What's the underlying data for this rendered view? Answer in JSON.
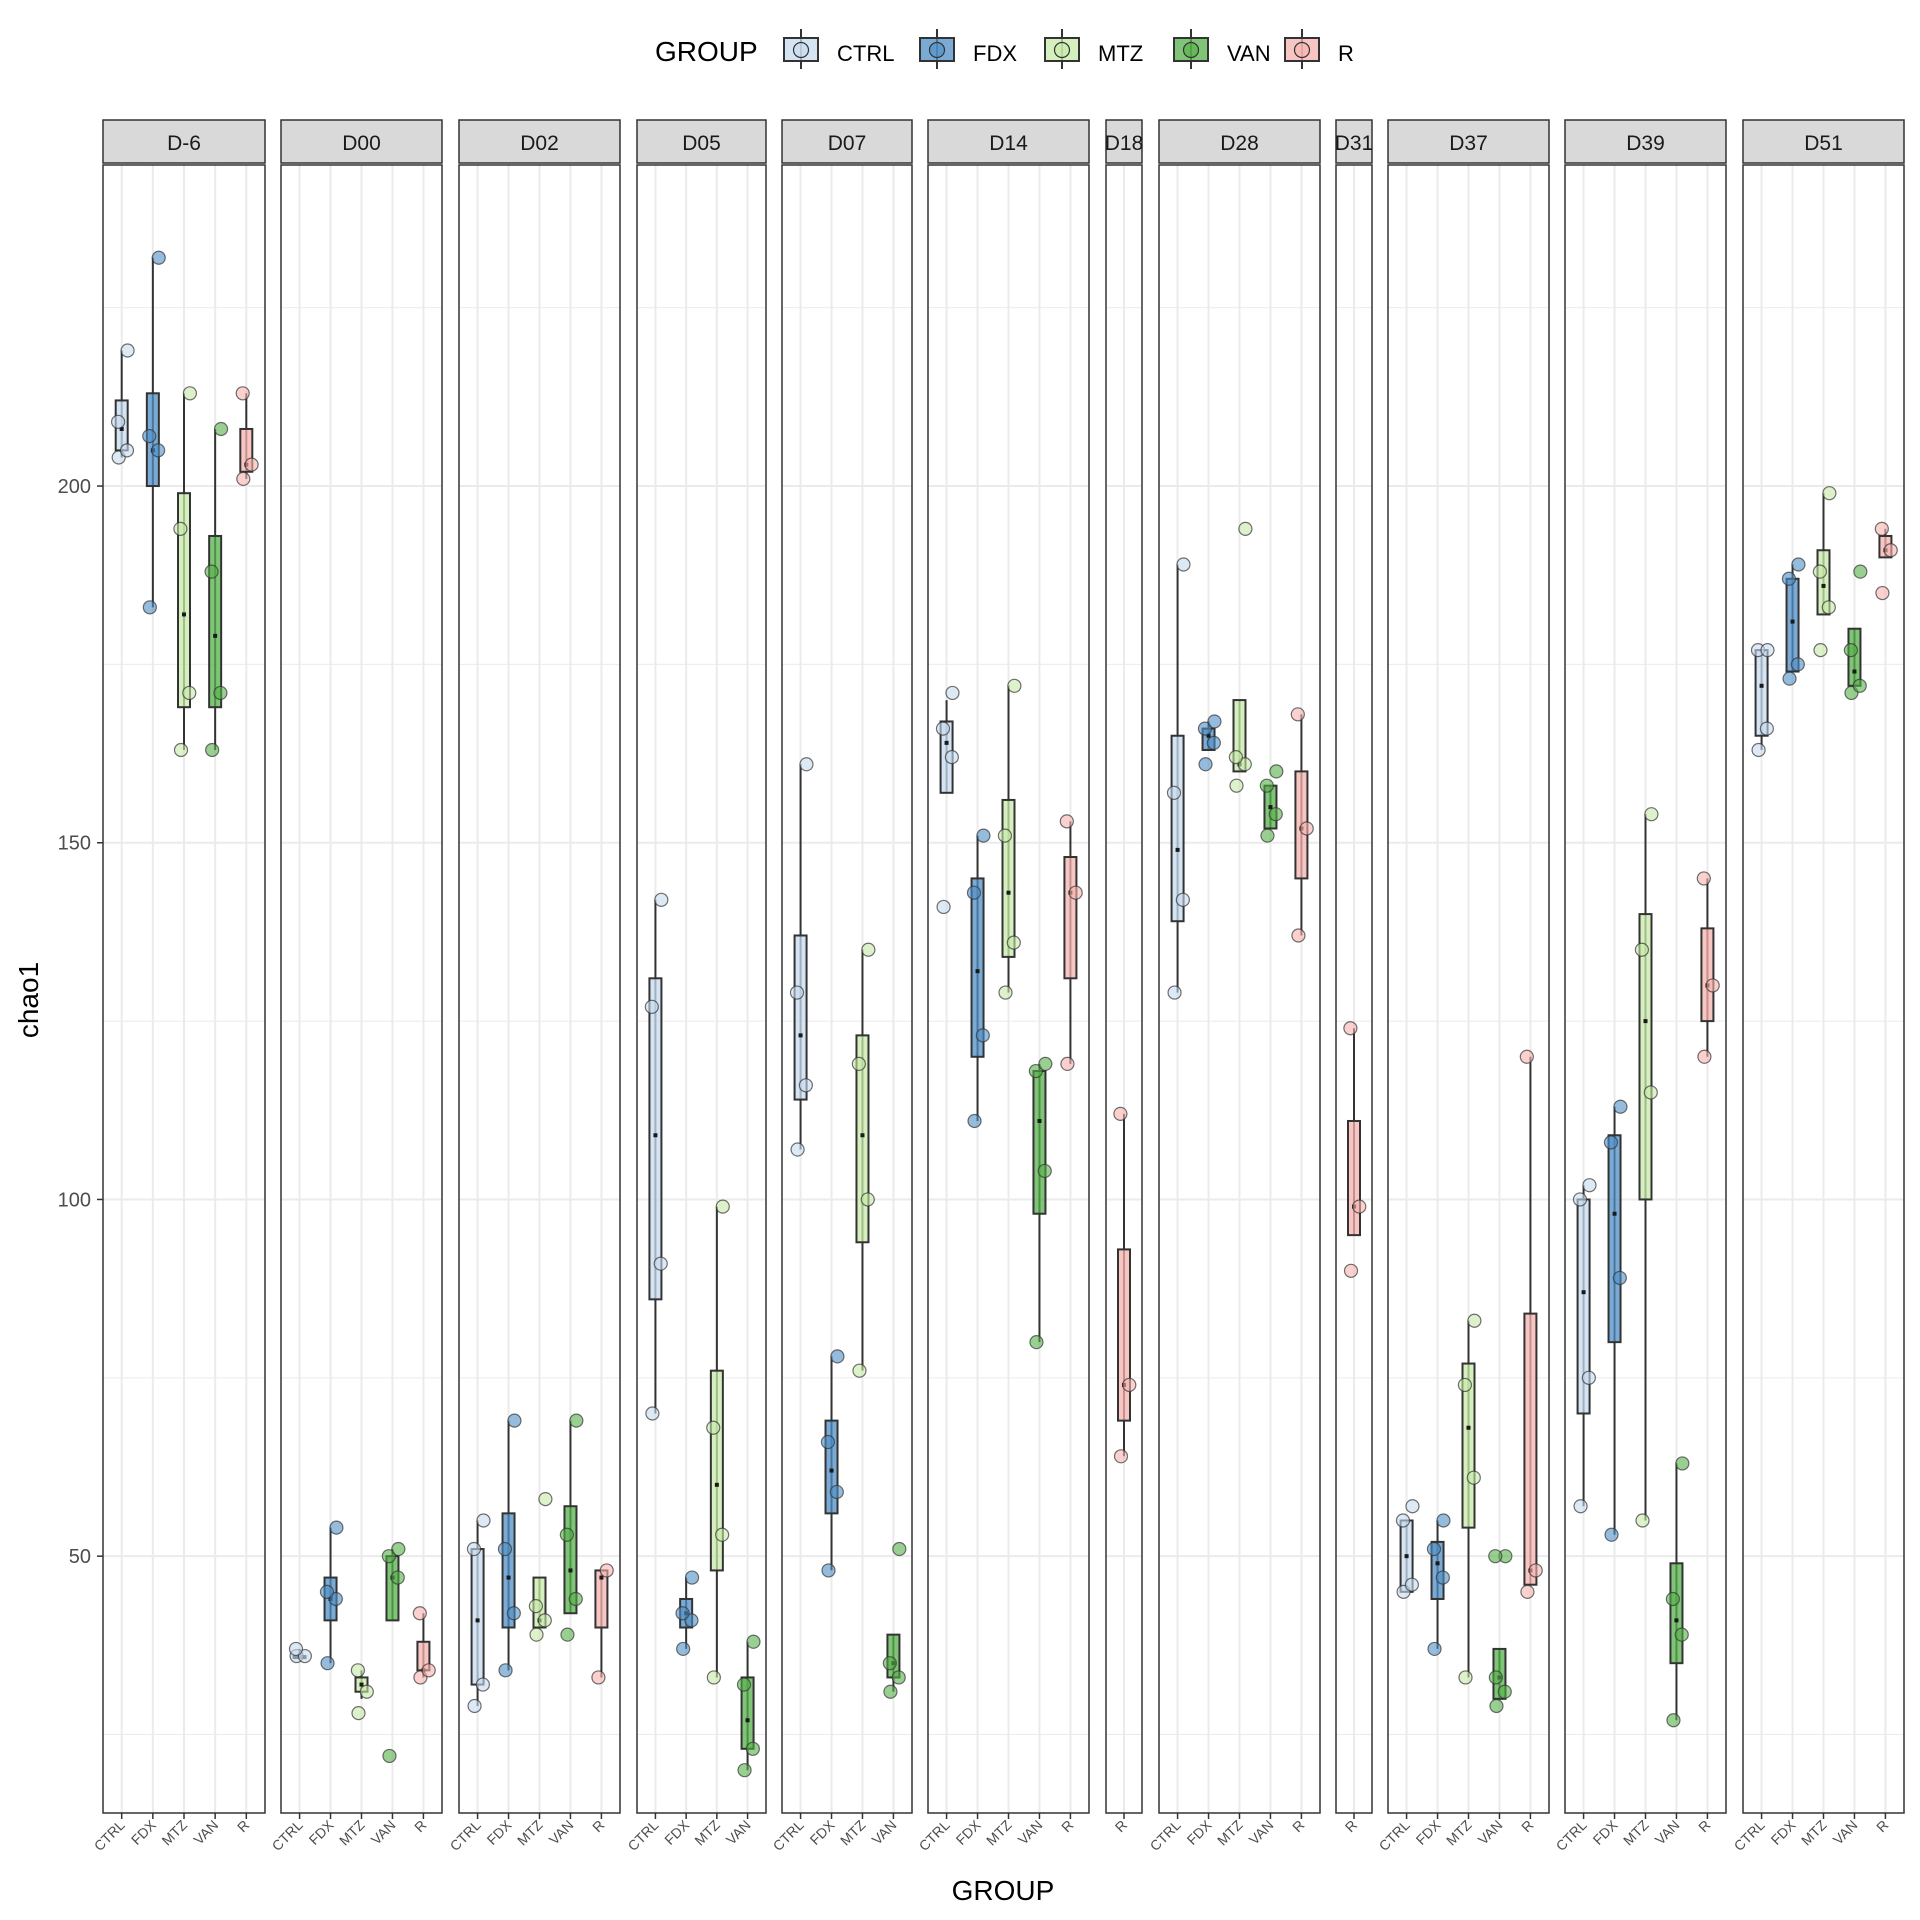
{
  "chart_data": {
    "type": "box",
    "ylabel": "chao1",
    "xlabel": "GROUP",
    "ylim": [
      14,
      245
    ],
    "yticks": [
      50,
      100,
      150,
      200
    ],
    "grid": true,
    "legend": {
      "title": "GROUP",
      "position": "top",
      "items": [
        {
          "name": "CTRL",
          "color": "#C6DBEF"
        },
        {
          "name": "FDX",
          "color": "#4F8FC6"
        },
        {
          "name": "MTZ",
          "color": "#C7E9A8"
        },
        {
          "name": "VAN",
          "color": "#55B04A"
        },
        {
          "name": "R",
          "color": "#F6B3AE"
        }
      ]
    },
    "facets": [
      {
        "label": "D-6",
        "groups": [
          {
            "name": "CTRL",
            "min": 204,
            "q1": 205,
            "median": 208,
            "q3": 212,
            "max": 219,
            "points": [
              204,
              205,
              209,
              219
            ]
          },
          {
            "name": "FDX",
            "min": 183,
            "q1": 200,
            "median": 205,
            "q3": 213,
            "max": 232,
            "points": [
              183,
              205,
              207,
              232
            ]
          },
          {
            "name": "MTZ",
            "min": 163,
            "q1": 169,
            "median": 182,
            "q3": 199,
            "max": 213,
            "points": [
              163,
              171,
              194,
              213
            ]
          },
          {
            "name": "VAN",
            "min": 163,
            "q1": 169,
            "median": 179,
            "q3": 193,
            "max": 208,
            "points": [
              163,
              171,
              188,
              208
            ]
          },
          {
            "name": "R",
            "min": 201,
            "q1": 202,
            "median": 203,
            "q3": 208,
            "max": 213,
            "points": [
              201,
              203,
              213
            ]
          }
        ]
      },
      {
        "label": "D00",
        "groups": [
          {
            "name": "CTRL",
            "min": 36,
            "q1": 36,
            "median": 36,
            "q3": 36,
            "max": 37,
            "points": [
              36,
              36,
              37
            ]
          },
          {
            "name": "FDX",
            "min": 35,
            "q1": 41,
            "median": 44,
            "q3": 47,
            "max": 54,
            "points": [
              35,
              44,
              45,
              54
            ]
          },
          {
            "name": "MTZ",
            "min": 30,
            "q1": 31,
            "median": 32,
            "q3": 33,
            "max": 34,
            "points": [
              28,
              31,
              34
            ]
          },
          {
            "name": "VAN",
            "min": 41,
            "q1": 41,
            "median": 47,
            "q3": 50,
            "max": 51,
            "points": [
              22,
              47,
              50,
              51
            ]
          },
          {
            "name": "R",
            "min": 33,
            "q1": 34,
            "median": 34,
            "q3": 38,
            "max": 42,
            "points": [
              33,
              34,
              42
            ]
          }
        ]
      },
      {
        "label": "D02",
        "groups": [
          {
            "name": "CTRL",
            "min": 29,
            "q1": 32,
            "median": 41,
            "q3": 51,
            "max": 55,
            "points": [
              29,
              32,
              51,
              55
            ]
          },
          {
            "name": "FDX",
            "min": 34,
            "q1": 40,
            "median": 47,
            "q3": 56,
            "max": 69,
            "points": [
              34,
              42,
              51,
              69
            ]
          },
          {
            "name": "MTZ",
            "min": 40,
            "q1": 40,
            "median": 41,
            "q3": 47,
            "max": 47,
            "points": [
              39,
              41,
              43,
              58
            ]
          },
          {
            "name": "VAN",
            "min": 42,
            "q1": 42,
            "median": 48,
            "q3": 57,
            "max": 69,
            "points": [
              39,
              44,
              53,
              69
            ]
          },
          {
            "name": "R",
            "min": 33,
            "q1": 40,
            "median": 47,
            "q3": 48,
            "max": 48,
            "points": [
              33,
              48
            ]
          }
        ]
      },
      {
        "label": "D05",
        "groups": [
          {
            "name": "CTRL",
            "min": 70,
            "q1": 86,
            "median": 109,
            "q3": 131,
            "max": 142,
            "points": [
              70,
              91,
              127,
              142
            ]
          },
          {
            "name": "FDX",
            "min": 37,
            "q1": 40,
            "median": 42,
            "q3": 44,
            "max": 47,
            "points": [
              37,
              41,
              42,
              47
            ]
          },
          {
            "name": "MTZ",
            "min": 33,
            "q1": 48,
            "median": 60,
            "q3": 76,
            "max": 99,
            "points": [
              33,
              53,
              68,
              99
            ]
          },
          {
            "name": "VAN",
            "min": 20,
            "q1": 23,
            "median": 27,
            "q3": 33,
            "max": 38,
            "points": [
              20,
              23,
              32,
              38
            ]
          }
        ]
      },
      {
        "label": "D07",
        "groups": [
          {
            "name": "CTRL",
            "min": 107,
            "q1": 114,
            "median": 123,
            "q3": 137,
            "max": 161,
            "points": [
              107,
              116,
              129,
              161
            ]
          },
          {
            "name": "FDX",
            "min": 48,
            "q1": 56,
            "median": 62,
            "q3": 69,
            "max": 78,
            "points": [
              48,
              59,
              66,
              78
            ]
          },
          {
            "name": "MTZ",
            "min": 76,
            "q1": 94,
            "median": 109,
            "q3": 123,
            "max": 135,
            "points": [
              76,
              100,
              119,
              135
            ]
          },
          {
            "name": "VAN",
            "min": 31,
            "q1": 33,
            "median": 35,
            "q3": 39,
            "max": 39,
            "points": [
              31,
              33,
              35,
              51
            ]
          }
        ]
      },
      {
        "label": "D14",
        "groups": [
          {
            "name": "CTRL",
            "min": 157,
            "q1": 157,
            "median": 164,
            "q3": 167,
            "max": 170,
            "points": [
              141,
              162,
              166,
              171
            ]
          },
          {
            "name": "FDX",
            "min": 111,
            "q1": 120,
            "median": 132,
            "q3": 145,
            "max": 151,
            "points": [
              111,
              123,
              143,
              151
            ]
          },
          {
            "name": "MTZ",
            "min": 129,
            "q1": 134,
            "median": 143,
            "q3": 156,
            "max": 172,
            "points": [
              129,
              136,
              151,
              172
            ]
          },
          {
            "name": "VAN",
            "min": 80,
            "q1": 98,
            "median": 111,
            "q3": 118,
            "max": 119,
            "points": [
              80,
              104,
              118,
              119
            ]
          },
          {
            "name": "R",
            "min": 119,
            "q1": 131,
            "median": 143,
            "q3": 148,
            "max": 153,
            "points": [
              119,
              143,
              153
            ]
          }
        ]
      },
      {
        "label": "D18",
        "groups": [
          {
            "name": "R",
            "min": 64,
            "q1": 69,
            "median": 74,
            "q3": 93,
            "max": 112,
            "points": [
              64,
              74,
              112
            ]
          }
        ]
      },
      {
        "label": "D28",
        "groups": [
          {
            "name": "CTRL",
            "min": 129,
            "q1": 139,
            "median": 149,
            "q3": 165,
            "max": 189,
            "points": [
              129,
              142,
              157,
              189
            ]
          },
          {
            "name": "FDX",
            "min": 163,
            "q1": 163,
            "median": 165,
            "q3": 166,
            "max": 167,
            "points": [
              161,
              164,
              166,
              167
            ]
          },
          {
            "name": "MTZ",
            "min": 160,
            "q1": 160,
            "median": 161,
            "q3": 170,
            "max": 170,
            "points": [
              158,
              161,
              162,
              194
            ]
          },
          {
            "name": "VAN",
            "min": 152,
            "q1": 152,
            "median": 155,
            "q3": 158,
            "max": 158,
            "points": [
              151,
              154,
              158,
              160
            ]
          },
          {
            "name": "R",
            "min": 137,
            "q1": 145,
            "median": 152,
            "q3": 160,
            "max": 168,
            "points": [
              137,
              152,
              168
            ]
          }
        ]
      },
      {
        "label": "D31",
        "groups": [
          {
            "name": "R",
            "min": 95,
            "q1": 95,
            "median": 99,
            "q3": 111,
            "max": 124,
            "points": [
              90,
              99,
              124
            ]
          }
        ]
      },
      {
        "label": "D37",
        "groups": [
          {
            "name": "CTRL",
            "min": 45,
            "q1": 45,
            "median": 50,
            "q3": 55,
            "max": 55,
            "points": [
              45,
              46,
              55,
              57
            ]
          },
          {
            "name": "FDX",
            "min": 37,
            "q1": 44,
            "median": 49,
            "q3": 52,
            "max": 55,
            "points": [
              37,
              47,
              51,
              55
            ]
          },
          {
            "name": "MTZ",
            "min": 33,
            "q1": 54,
            "median": 68,
            "q3": 77,
            "max": 83,
            "points": [
              33,
              61,
              74,
              83
            ]
          },
          {
            "name": "VAN",
            "min": 30,
            "q1": 30,
            "median": 33,
            "q3": 37,
            "max": 37,
            "points": [
              29,
              31,
              33,
              50,
              50
            ]
          },
          {
            "name": "R",
            "min": 46,
            "q1": 46,
            "median": 48,
            "q3": 84,
            "max": 120,
            "points": [
              45,
              48,
              120
            ]
          }
        ]
      },
      {
        "label": "D39",
        "groups": [
          {
            "name": "CTRL",
            "min": 57,
            "q1": 70,
            "median": 87,
            "q3": 100,
            "max": 102,
            "points": [
              57,
              75,
              100,
              102
            ]
          },
          {
            "name": "FDX",
            "min": 53,
            "q1": 80,
            "median": 98,
            "q3": 109,
            "max": 113,
            "points": [
              53,
              89,
              108,
              113
            ]
          },
          {
            "name": "MTZ",
            "min": 55,
            "q1": 100,
            "median": 125,
            "q3": 140,
            "max": 154,
            "points": [
              55,
              115,
              135,
              154
            ]
          },
          {
            "name": "VAN",
            "min": 27,
            "q1": 35,
            "median": 41,
            "q3": 49,
            "max": 63,
            "points": [
              27,
              39,
              44,
              63
            ]
          },
          {
            "name": "R",
            "min": 120,
            "q1": 125,
            "median": 130,
            "q3": 138,
            "max": 145,
            "points": [
              120,
              130,
              145
            ]
          }
        ]
      },
      {
        "label": "D51",
        "groups": [
          {
            "name": "CTRL",
            "min": 163,
            "q1": 165,
            "median": 172,
            "q3": 177,
            "max": 177,
            "points": [
              163,
              166,
              177,
              177
            ]
          },
          {
            "name": "FDX",
            "min": 174,
            "q1": 174,
            "median": 181,
            "q3": 187,
            "max": 189,
            "points": [
              173,
              175,
              187,
              189
            ]
          },
          {
            "name": "MTZ",
            "min": 182,
            "q1": 182,
            "median": 186,
            "q3": 191,
            "max": 199,
            "points": [
              177,
              183,
              188,
              199
            ]
          },
          {
            "name": "VAN",
            "min": 172,
            "q1": 172,
            "median": 174,
            "q3": 180,
            "max": 180,
            "points": [
              171,
              172,
              177,
              188
            ]
          },
          {
            "name": "R",
            "min": 190,
            "q1": 190,
            "median": 191,
            "q3": 193,
            "max": 194,
            "points": [
              185,
              191,
              194
            ]
          }
        ]
      }
    ]
  }
}
